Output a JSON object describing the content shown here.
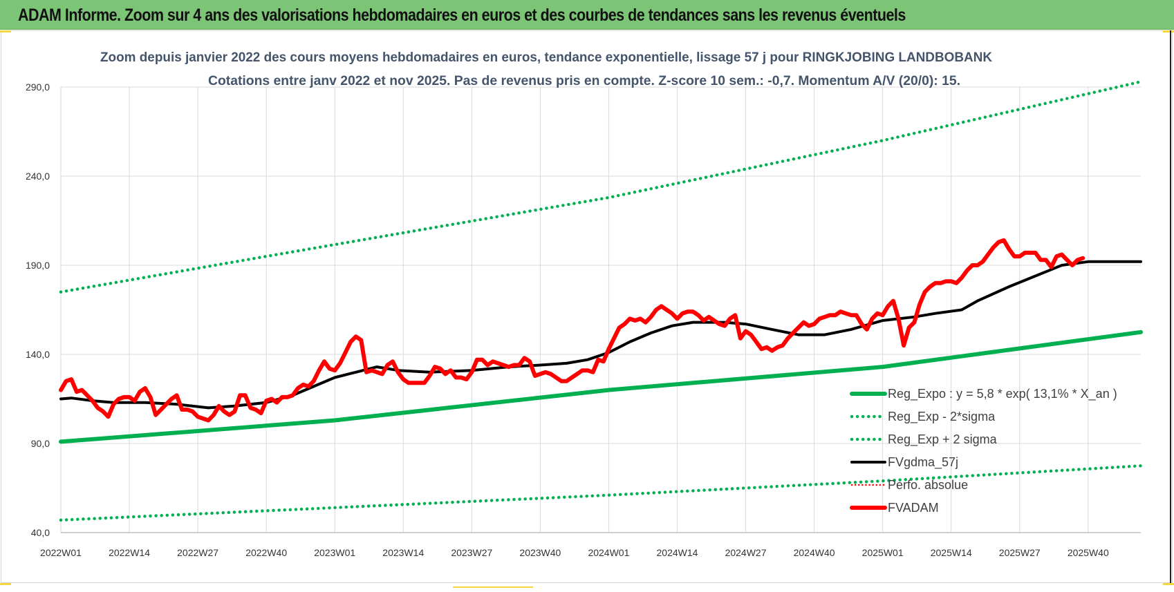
{
  "header": {
    "title": "ADAM Informe. Zoom sur 4 ans des valorisations hebdomadaires en euros et des courbes de tendances sans les revenus éventuels"
  },
  "colors": {
    "header_bg": "#7cc576",
    "reg_expo": "#00b050",
    "sigma": "#00b050",
    "fvgdma": "#000000",
    "perfo": "#ff0000",
    "fvadam": "#ff0000",
    "subtitle": "#44546a",
    "grid": "#d9d9d9"
  },
  "chart_data": {
    "type": "line",
    "title_line1": "Zoom depuis janvier 2022 des cours moyens hebdomadaires en euros, tendance exponentielle, lissage 57 j pour RINGKJOBING LANDBOBANK",
    "title_line2": "Cotations entre janv 2022 et nov 2025. Pas de revenus pris en compte. Z-score 10 sem.: -0,7. Momentum A/V (20/0): 15.",
    "ylim": [
      40,
      290
    ],
    "y_ticks": [
      "40,0",
      "90,0",
      "140,0",
      "190,0",
      "240,0",
      "290,0"
    ],
    "y_tick_values": [
      40,
      90,
      140,
      190,
      240,
      290
    ],
    "x_ticks": [
      "2022W01",
      "2022W14",
      "2022W27",
      "2022W40",
      "2023W01",
      "2023W14",
      "2023W27",
      "2023W40",
      "2024W01",
      "2024W14",
      "2024W27",
      "2024W40",
      "2025W01",
      "2025W14",
      "2025W27",
      "2025W40"
    ],
    "x_tick_weeks": [
      0,
      13,
      26,
      39,
      52,
      65,
      78,
      91,
      104,
      117,
      130,
      143,
      156,
      169,
      182,
      195
    ],
    "x_range_weeks": [
      0,
      205
    ],
    "grid": true,
    "legend_position": "bottom-right",
    "series": [
      {
        "name": "Reg_Expo : y = 5,8 * exp( 13,1% * X_an )",
        "style": "solid-thick",
        "color": "#00b050",
        "points": [
          [
            0,
            91
          ],
          [
            52,
            103
          ],
          [
            104,
            120
          ],
          [
            156,
            133
          ],
          [
            205,
            152.5
          ]
        ]
      },
      {
        "name": "Reg_Exp - 2*sigma",
        "style": "dotted",
        "color": "#00b050",
        "points": [
          [
            0,
            47
          ],
          [
            52,
            54
          ],
          [
            104,
            61
          ],
          [
            156,
            69
          ],
          [
            205,
            77.5
          ]
        ]
      },
      {
        "name": "Reg_Exp + 2 sigma",
        "style": "dotted",
        "color": "#00b050",
        "points": [
          [
            0,
            175
          ],
          [
            39,
            195
          ],
          [
            104,
            228
          ],
          [
            156,
            260
          ],
          [
            205,
            293
          ]
        ]
      },
      {
        "name": "FVgdma_57j",
        "style": "solid",
        "color": "#000000",
        "points": [
          [
            0,
            115
          ],
          [
            2,
            115.5
          ],
          [
            6,
            114
          ],
          [
            10,
            113
          ],
          [
            16,
            113
          ],
          [
            22,
            112
          ],
          [
            28,
            110
          ],
          [
            33,
            111
          ],
          [
            39,
            113
          ],
          [
            44,
            117
          ],
          [
            48,
            122
          ],
          [
            52,
            127
          ],
          [
            56,
            130
          ],
          [
            60,
            133
          ],
          [
            64,
            131
          ],
          [
            70,
            130
          ],
          [
            78,
            131
          ],
          [
            85,
            133
          ],
          [
            91,
            134
          ],
          [
            96,
            135
          ],
          [
            100,
            137
          ],
          [
            104,
            141
          ],
          [
            108,
            147
          ],
          [
            112,
            152
          ],
          [
            116,
            156
          ],
          [
            120,
            158
          ],
          [
            126,
            158
          ],
          [
            130,
            157
          ],
          [
            135,
            154
          ],
          [
            140,
            151
          ],
          [
            145,
            151
          ],
          [
            150,
            154
          ],
          [
            156,
            159
          ],
          [
            162,
            161
          ],
          [
            166,
            163
          ],
          [
            171,
            165
          ],
          [
            174,
            170
          ],
          [
            180,
            178
          ],
          [
            185,
            184
          ],
          [
            190,
            190
          ],
          [
            195,
            192
          ],
          [
            200,
            192
          ],
          [
            205,
            192
          ]
        ]
      },
      {
        "name": "Perfo. absolue",
        "style": "dotted-thin",
        "color": "#ff0000",
        "points": []
      },
      {
        "name": "FVADAM",
        "style": "solid-thick",
        "color": "#ff0000",
        "points": [
          [
            0,
            120
          ],
          [
            1,
            125
          ],
          [
            2,
            126
          ],
          [
            3,
            119
          ],
          [
            4,
            120
          ],
          [
            5,
            117
          ],
          [
            6,
            114
          ],
          [
            7,
            110
          ],
          [
            8,
            108
          ],
          [
            9,
            105
          ],
          [
            10,
            112
          ],
          [
            11,
            115
          ],
          [
            12,
            116
          ],
          [
            13,
            116
          ],
          [
            14,
            114
          ],
          [
            15,
            119
          ],
          [
            16,
            121
          ],
          [
            17,
            116
          ],
          [
            18,
            106
          ],
          [
            19,
            109
          ],
          [
            20,
            112
          ],
          [
            21,
            115
          ],
          [
            22,
            117
          ],
          [
            23,
            109
          ],
          [
            24,
            109
          ],
          [
            25,
            108
          ],
          [
            26,
            105
          ],
          [
            27,
            104
          ],
          [
            28,
            103
          ],
          [
            29,
            106
          ],
          [
            30,
            111
          ],
          [
            31,
            108
          ],
          [
            32,
            106
          ],
          [
            33,
            108
          ],
          [
            34,
            117
          ],
          [
            35,
            117
          ],
          [
            36,
            110
          ],
          [
            37,
            109
          ],
          [
            38,
            107
          ],
          [
            39,
            114
          ],
          [
            40,
            115
          ],
          [
            41,
            113
          ],
          [
            42,
            116
          ],
          [
            43,
            116
          ],
          [
            44,
            117
          ],
          [
            45,
            121
          ],
          [
            46,
            123
          ],
          [
            47,
            122
          ],
          [
            48,
            125
          ],
          [
            49,
            131
          ],
          [
            50,
            136
          ],
          [
            51,
            132
          ],
          [
            52,
            131
          ],
          [
            53,
            135
          ],
          [
            54,
            141
          ],
          [
            55,
            147
          ],
          [
            56,
            150
          ],
          [
            57,
            148
          ],
          [
            58,
            130
          ],
          [
            59,
            131
          ],
          [
            60,
            130
          ],
          [
            61,
            129
          ],
          [
            62,
            134
          ],
          [
            63,
            136
          ],
          [
            64,
            130
          ],
          [
            65,
            126
          ],
          [
            66,
            124
          ],
          [
            67,
            124
          ],
          [
            68,
            124
          ],
          [
            69,
            124
          ],
          [
            70,
            128
          ],
          [
            71,
            133
          ],
          [
            72,
            132
          ],
          [
            73,
            129
          ],
          [
            74,
            131
          ],
          [
            75,
            127
          ],
          [
            76,
            127
          ],
          [
            77,
            126
          ],
          [
            78,
            130
          ],
          [
            79,
            137
          ],
          [
            80,
            137
          ],
          [
            81,
            134
          ],
          [
            82,
            136
          ],
          [
            83,
            135
          ],
          [
            84,
            134
          ],
          [
            85,
            133
          ],
          [
            86,
            134
          ],
          [
            87,
            134
          ],
          [
            88,
            138
          ],
          [
            89,
            136
          ],
          [
            90,
            128
          ],
          [
            91,
            129
          ],
          [
            92,
            130
          ],
          [
            93,
            129
          ],
          [
            94,
            127
          ],
          [
            95,
            125
          ],
          [
            96,
            125
          ],
          [
            97,
            127
          ],
          [
            98,
            129
          ],
          [
            99,
            131
          ],
          [
            100,
            131
          ],
          [
            101,
            130
          ],
          [
            102,
            137
          ],
          [
            103,
            136
          ],
          [
            104,
            143
          ],
          [
            105,
            149
          ],
          [
            106,
            155
          ],
          [
            107,
            157
          ],
          [
            108,
            160
          ],
          [
            109,
            159
          ],
          [
            110,
            160
          ],
          [
            111,
            158
          ],
          [
            112,
            161
          ],
          [
            113,
            165
          ],
          [
            114,
            167
          ],
          [
            115,
            165
          ],
          [
            116,
            163
          ],
          [
            117,
            160
          ],
          [
            118,
            163
          ],
          [
            119,
            164
          ],
          [
            120,
            164
          ],
          [
            121,
            162
          ],
          [
            122,
            159
          ],
          [
            123,
            161
          ],
          [
            124,
            159
          ],
          [
            125,
            157
          ],
          [
            126,
            156
          ],
          [
            127,
            160
          ],
          [
            128,
            162
          ],
          [
            129,
            149
          ],
          [
            130,
            153
          ],
          [
            131,
            151
          ],
          [
            132,
            147
          ],
          [
            133,
            143
          ],
          [
            134,
            144
          ],
          [
            135,
            142
          ],
          [
            136,
            144
          ],
          [
            137,
            145
          ],
          [
            138,
            149
          ],
          [
            139,
            152
          ],
          [
            140,
            155
          ],
          [
            141,
            158
          ],
          [
            142,
            156
          ],
          [
            143,
            157
          ],
          [
            144,
            160
          ],
          [
            145,
            161
          ],
          [
            146,
            162
          ],
          [
            147,
            162
          ],
          [
            148,
            164
          ],
          [
            149,
            163
          ],
          [
            150,
            162
          ],
          [
            151,
            162
          ],
          [
            152,
            157
          ],
          [
            153,
            154
          ],
          [
            154,
            160
          ],
          [
            155,
            163
          ],
          [
            156,
            162
          ],
          [
            157,
            167
          ],
          [
            158,
            170
          ],
          [
            159,
            160
          ],
          [
            160,
            145
          ],
          [
            161,
            155
          ],
          [
            162,
            158
          ],
          [
            163,
            168
          ],
          [
            164,
            175
          ],
          [
            165,
            178
          ],
          [
            166,
            180
          ],
          [
            167,
            180
          ],
          [
            168,
            181
          ],
          [
            169,
            181
          ],
          [
            170,
            180
          ],
          [
            171,
            183
          ],
          [
            172,
            187
          ],
          [
            173,
            190
          ],
          [
            174,
            190
          ],
          [
            175,
            192
          ],
          [
            176,
            196
          ],
          [
            177,
            200
          ],
          [
            178,
            203
          ],
          [
            179,
            204
          ],
          [
            180,
            199
          ],
          [
            181,
            195
          ],
          [
            182,
            195
          ],
          [
            183,
            197
          ],
          [
            184,
            197
          ],
          [
            185,
            197
          ],
          [
            186,
            193
          ],
          [
            187,
            193
          ],
          [
            188,
            189
          ],
          [
            189,
            195
          ],
          [
            190,
            196
          ],
          [
            191,
            193
          ],
          [
            192,
            190
          ],
          [
            193,
            193
          ],
          [
            194,
            194
          ]
        ]
      }
    ]
  }
}
